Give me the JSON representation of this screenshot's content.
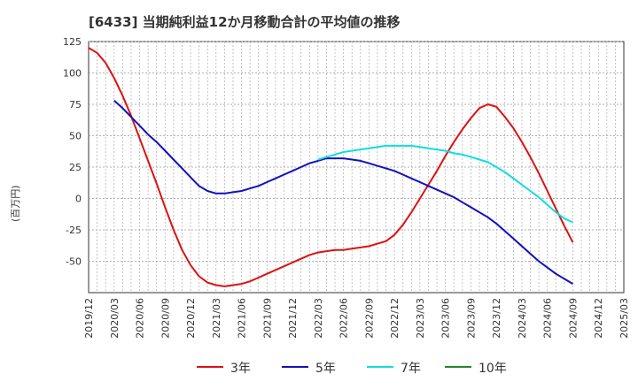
{
  "title": "[6433]  当期純利益12か月移動合計の平均値の推移",
  "chart_data": {
    "type": "line",
    "ylabel": "(百万円)",
    "ylim": [
      -75,
      125
    ],
    "yticks": [
      125,
      100,
      75,
      50,
      25,
      0,
      -25,
      -50
    ],
    "xticks": [
      "2019/12",
      "2020/03",
      "2020/06",
      "2020/09",
      "2020/12",
      "2021/03",
      "2021/06",
      "2021/09",
      "2021/12",
      "2022/03",
      "2022/06",
      "2022/09",
      "2022/12",
      "2023/03",
      "2023/06",
      "2023/09",
      "2023/12",
      "2024/03",
      "2024/06",
      "2024/09",
      "2024/12",
      "2025/03"
    ],
    "grid": true,
    "legend_position": "bottom",
    "series": [
      {
        "name": "3年",
        "color": "#dd1111",
        "points": [
          [
            "2019/12",
            120
          ],
          [
            "2020/01",
            116
          ],
          [
            "2020/02",
            108
          ],
          [
            "2020/03",
            96
          ],
          [
            "2020/04",
            82
          ],
          [
            "2020/05",
            66
          ],
          [
            "2020/06",
            48
          ],
          [
            "2020/07",
            30
          ],
          [
            "2020/08",
            12
          ],
          [
            "2020/09",
            -7
          ],
          [
            "2020/10",
            -25
          ],
          [
            "2020/11",
            -41
          ],
          [
            "2020/12",
            -53
          ],
          [
            "2021/01",
            -62
          ],
          [
            "2021/02",
            -67
          ],
          [
            "2021/03",
            -69
          ],
          [
            "2021/04",
            -70
          ],
          [
            "2021/05",
            -69
          ],
          [
            "2021/06",
            -68
          ],
          [
            "2021/07",
            -66
          ],
          [
            "2021/08",
            -63
          ],
          [
            "2021/09",
            -60
          ],
          [
            "2021/10",
            -57
          ],
          [
            "2021/11",
            -54
          ],
          [
            "2021/12",
            -51
          ],
          [
            "2022/01",
            -48
          ],
          [
            "2022/02",
            -45
          ],
          [
            "2022/03",
            -43
          ],
          [
            "2022/04",
            -42
          ],
          [
            "2022/05",
            -41
          ],
          [
            "2022/06",
            -41
          ],
          [
            "2022/07",
            -40
          ],
          [
            "2022/08",
            -39
          ],
          [
            "2022/09",
            -38
          ],
          [
            "2022/10",
            -36
          ],
          [
            "2022/11",
            -34
          ],
          [
            "2022/12",
            -29
          ],
          [
            "2023/01",
            -21
          ],
          [
            "2023/02",
            -11
          ],
          [
            "2023/03",
            0
          ],
          [
            "2023/04",
            11
          ],
          [
            "2023/05",
            22
          ],
          [
            "2023/06",
            34
          ],
          [
            "2023/07",
            45
          ],
          [
            "2023/08",
            55
          ],
          [
            "2023/09",
            64
          ],
          [
            "2023/10",
            72
          ],
          [
            "2023/11",
            75
          ],
          [
            "2023/12",
            73
          ],
          [
            "2024/01",
            65
          ],
          [
            "2024/02",
            56
          ],
          [
            "2024/03",
            45
          ],
          [
            "2024/04",
            33
          ],
          [
            "2024/05",
            20
          ],
          [
            "2024/06",
            6
          ],
          [
            "2024/07",
            -8
          ],
          [
            "2024/08",
            -22
          ],
          [
            "2024/09",
            -35
          ]
        ]
      },
      {
        "name": "5年",
        "color": "#1111bb",
        "points": [
          [
            "2020/03",
            78
          ],
          [
            "2020/04",
            72
          ],
          [
            "2020/05",
            65
          ],
          [
            "2020/06",
            58
          ],
          [
            "2020/07",
            51
          ],
          [
            "2020/08",
            45
          ],
          [
            "2020/09",
            38
          ],
          [
            "2020/10",
            31
          ],
          [
            "2020/11",
            24
          ],
          [
            "2020/12",
            17
          ],
          [
            "2021/01",
            10
          ],
          [
            "2021/02",
            6
          ],
          [
            "2021/03",
            4
          ],
          [
            "2021/04",
            4
          ],
          [
            "2021/05",
            5
          ],
          [
            "2021/06",
            6
          ],
          [
            "2021/07",
            8
          ],
          [
            "2021/08",
            10
          ],
          [
            "2021/09",
            13
          ],
          [
            "2021/10",
            16
          ],
          [
            "2021/11",
            19
          ],
          [
            "2021/12",
            22
          ],
          [
            "2022/01",
            25
          ],
          [
            "2022/02",
            28
          ],
          [
            "2022/03",
            30
          ],
          [
            "2022/04",
            32
          ],
          [
            "2022/05",
            32
          ],
          [
            "2022/06",
            32
          ],
          [
            "2022/07",
            31
          ],
          [
            "2022/08",
            30
          ],
          [
            "2022/09",
            28
          ],
          [
            "2022/10",
            26
          ],
          [
            "2022/11",
            24
          ],
          [
            "2022/12",
            22
          ],
          [
            "2023/01",
            19
          ],
          [
            "2023/02",
            16
          ],
          [
            "2023/03",
            13
          ],
          [
            "2023/04",
            10
          ],
          [
            "2023/05",
            7
          ],
          [
            "2023/06",
            4
          ],
          [
            "2023/07",
            1
          ],
          [
            "2023/08",
            -3
          ],
          [
            "2023/09",
            -7
          ],
          [
            "2023/10",
            -11
          ],
          [
            "2023/11",
            -15
          ],
          [
            "2023/12",
            -20
          ],
          [
            "2024/01",
            -26
          ],
          [
            "2024/02",
            -32
          ],
          [
            "2024/03",
            -38
          ],
          [
            "2024/04",
            -44
          ],
          [
            "2024/05",
            -50
          ],
          [
            "2024/06",
            -55
          ],
          [
            "2024/07",
            -60
          ],
          [
            "2024/08",
            -64
          ],
          [
            "2024/09",
            -68
          ]
        ]
      },
      {
        "name": "7年",
        "color": "#11dddd",
        "points": [
          [
            "2022/03",
            31
          ],
          [
            "2022/04",
            33
          ],
          [
            "2022/05",
            35
          ],
          [
            "2022/06",
            37
          ],
          [
            "2022/07",
            38
          ],
          [
            "2022/08",
            39
          ],
          [
            "2022/09",
            40
          ],
          [
            "2022/10",
            41
          ],
          [
            "2022/11",
            42
          ],
          [
            "2022/12",
            42
          ],
          [
            "2023/01",
            42
          ],
          [
            "2023/02",
            42
          ],
          [
            "2023/03",
            41
          ],
          [
            "2023/04",
            40
          ],
          [
            "2023/05",
            39
          ],
          [
            "2023/06",
            38
          ],
          [
            "2023/07",
            36
          ],
          [
            "2023/08",
            35
          ],
          [
            "2023/09",
            33
          ],
          [
            "2023/10",
            31
          ],
          [
            "2023/11",
            29
          ],
          [
            "2023/12",
            25
          ],
          [
            "2024/01",
            21
          ],
          [
            "2024/02",
            16
          ],
          [
            "2024/03",
            11
          ],
          [
            "2024/04",
            6
          ],
          [
            "2024/05",
            1
          ],
          [
            "2024/06",
            -5
          ],
          [
            "2024/07",
            -11
          ],
          [
            "2024/08",
            -16
          ],
          [
            "2024/09",
            -19
          ]
        ]
      },
      {
        "name": "10年",
        "color": "#228822",
        "points": []
      }
    ]
  }
}
